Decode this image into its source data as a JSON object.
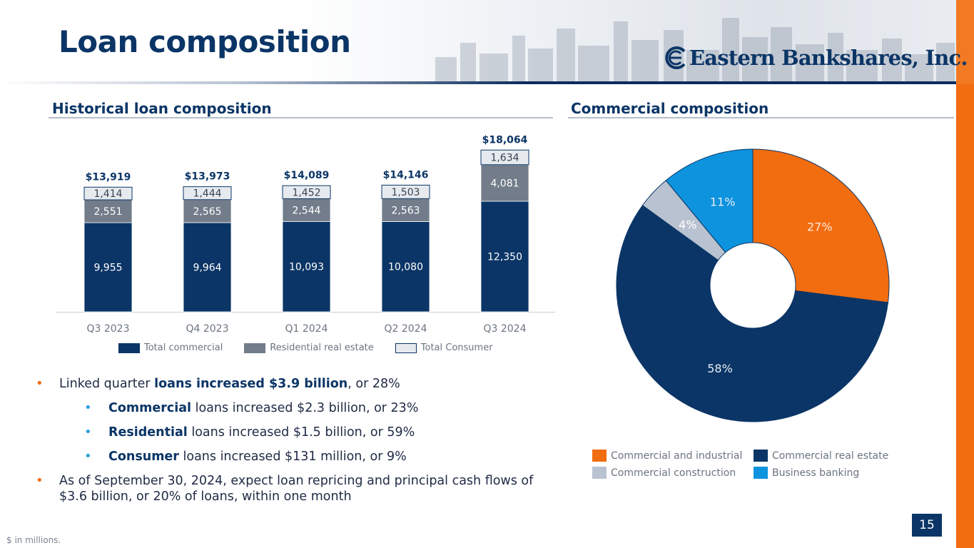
{
  "title": "Loan composition",
  "brand": {
    "logo_text": "Eastern Bankshares, Inc.",
    "primary_color": "#0b3566",
    "accent_color": "#f26c10"
  },
  "left_section_title": "Historical loan composition",
  "right_section_title": "Commercial composition",
  "chart_data": [
    {
      "type": "bar",
      "stacked": true,
      "title": "Historical loan composition",
      "categories": [
        "Q3 2023",
        "Q4 2023",
        "Q1 2024",
        "Q2 2024",
        "Q3 2024"
      ],
      "series": [
        {
          "name": "Total commercial",
          "values": [
            9955,
            9964,
            10093,
            10080,
            12350
          ],
          "labels": [
            "9,955",
            "9,964",
            "10,093",
            "10,080",
            "12,350"
          ],
          "color": "#0b3566"
        },
        {
          "name": "Residential real estate",
          "values": [
            2551,
            2565,
            2544,
            2563,
            4081
          ],
          "labels": [
            "2,551",
            "2,565",
            "2,544",
            "2,563",
            "4,081"
          ],
          "color": "#727c8a"
        },
        {
          "name": "Total Consumer",
          "values": [
            1414,
            1444,
            1452,
            1503,
            1634
          ],
          "labels": [
            "1,414",
            "1,444",
            "1,452",
            "1,503",
            "1,634"
          ],
          "color": "#e6eaef"
        }
      ],
      "totals": [
        "$13,919",
        "$13,973",
        "$14,089",
        "$14,146",
        "$18,064"
      ],
      "ylim": [
        0,
        18064
      ],
      "xlabel": "",
      "ylabel": ""
    },
    {
      "type": "pie",
      "donut": true,
      "title": "Commercial composition",
      "labels": [
        "Commercial and industrial",
        "Commercial real estate",
        "Commercial construction",
        "Business banking"
      ],
      "values": [
        27,
        58,
        4,
        11
      ],
      "value_labels": [
        "27%",
        "58%",
        "4%",
        "11%"
      ],
      "colors": [
        "#f26c10",
        "#0b3566",
        "#b8c2d0",
        "#0e93de"
      ]
    }
  ],
  "bullets": [
    {
      "level": 1,
      "parts": [
        {
          "t": "Linked quarter "
        },
        {
          "t": "loans increased $3.9 billion",
          "hl": true
        },
        {
          "t": ", or 28%"
        }
      ]
    },
    {
      "level": 2,
      "parts": [
        {
          "t": "Commercial",
          "hl": true
        },
        {
          "t": " loans increased $2.3 billion, or 23%"
        }
      ]
    },
    {
      "level": 2,
      "parts": [
        {
          "t": "Residential",
          "hl": true
        },
        {
          "t": " loans increased $1.5 billion, or 59%"
        }
      ]
    },
    {
      "level": 2,
      "parts": [
        {
          "t": "Consumer",
          "hl": true
        },
        {
          "t": " loans increased $131 million, or 9%"
        }
      ]
    },
    {
      "level": 1,
      "parts": [
        {
          "t": "As of September 30, 2024, expect loan repricing and principal cash flows of $3.6 billion, or 20% of loans, within one month"
        }
      ]
    }
  ],
  "footnote": "$ in millions.",
  "page_number": "15"
}
